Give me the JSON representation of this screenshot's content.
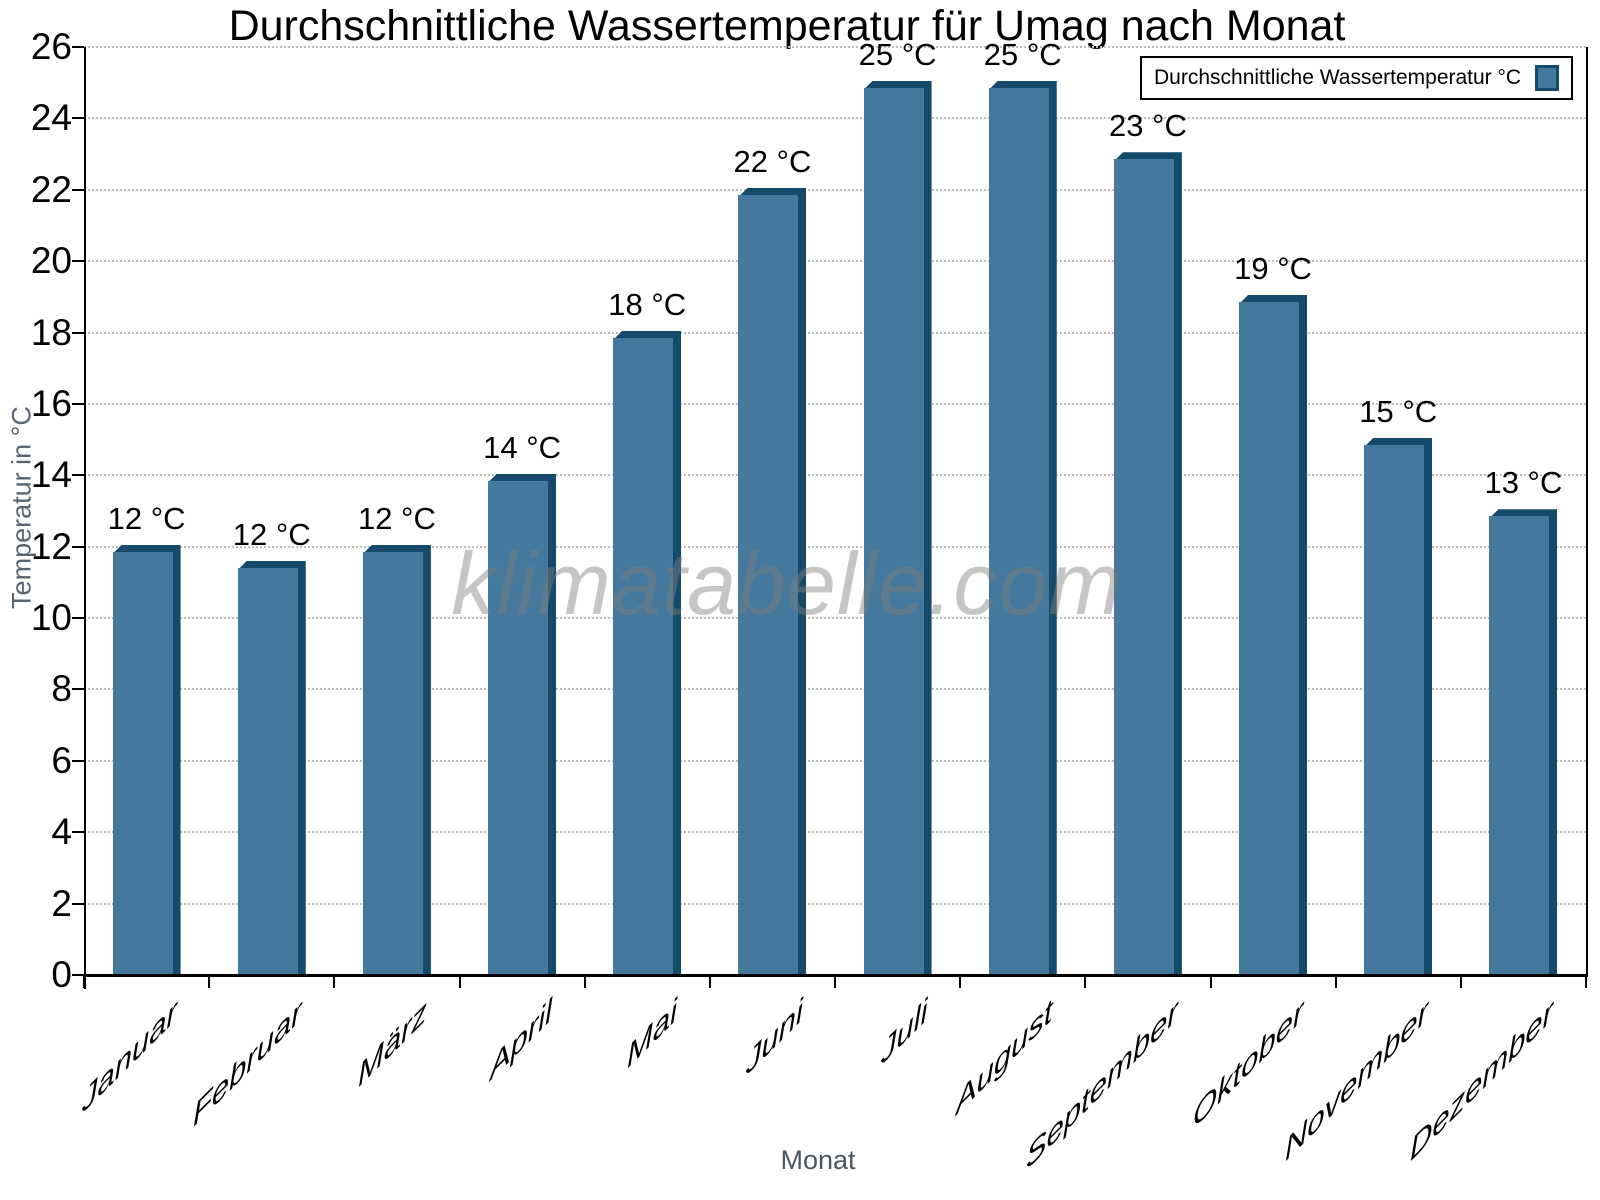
{
  "chart_data": {
    "type": "bar",
    "title": "Durchschnittliche Wassertemperatur für Umag nach Monat",
    "xlabel": "Monat",
    "ylabel": "Temperatur in °C",
    "categories": [
      "Januar",
      "Februar",
      "März",
      "April",
      "Mai",
      "Juni",
      "Juli",
      "August",
      "September",
      "Oktober",
      "November",
      "Dezember"
    ],
    "values": [
      12,
      12,
      12,
      14,
      18,
      22,
      25,
      25,
      23,
      19,
      15,
      13
    ],
    "bar_labels": [
      "12 °C",
      "12 °C",
      "12 °C",
      "14 °C",
      "18 °C",
      "22 °C",
      "25 °C",
      "25 °C",
      "23 °C",
      "19 °C",
      "15 °C",
      "13 °C"
    ],
    "plotted_bar_tops": [
      12.05,
      11.6,
      12.05,
      14.05,
      18.05,
      22.05,
      25.05,
      25.05,
      23.05,
      19.05,
      15.05,
      13.05
    ],
    "ylim": [
      0,
      26
    ],
    "ytick_step": 2,
    "ytick_labels": [
      "0",
      "2",
      "4",
      "6",
      "8",
      "10",
      "12",
      "14",
      "16",
      "18",
      "20",
      "22",
      "24",
      "26"
    ],
    "grid": "horizontal-dotted",
    "legend": {
      "label": "Durchschnittliche Wassertemperatur °C",
      "position": "top-right"
    },
    "watermark": "klimatabelle.com",
    "colors": {
      "bar_face": "#44789C",
      "bar_edge": "#164A6B",
      "gridline": "#bdbdbd",
      "axis": "#000000",
      "axis_title_gray": "#5a646e",
      "watermark_gray": "#7f7f7f"
    }
  }
}
